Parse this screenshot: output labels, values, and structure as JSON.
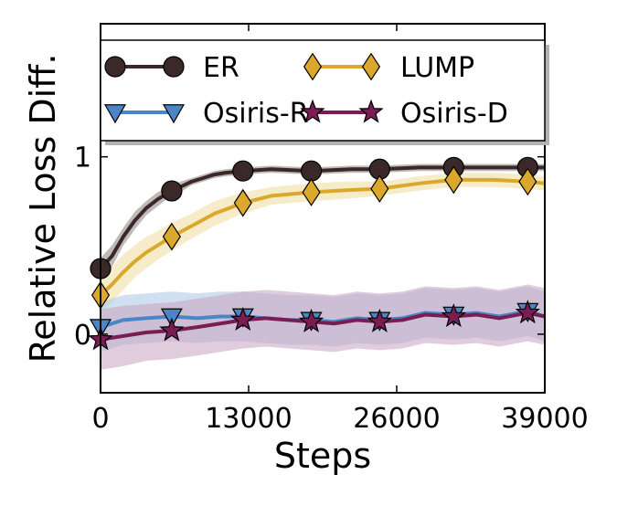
{
  "chart_data": {
    "type": "line",
    "xlabel": "Steps",
    "ylabel": "Relative Loss Diff.",
    "xlim": [
      0,
      39000
    ],
    "ylim": [
      -0.33,
      1.75
    ],
    "xticks": [
      {
        "value": 0,
        "label": "0"
      },
      {
        "value": 13000,
        "label": "13000"
      },
      {
        "value": 26000,
        "label": "26000"
      },
      {
        "value": 39000,
        "label": "39000"
      }
    ],
    "yticks": [
      {
        "value": 0,
        "label": "0"
      },
      {
        "value": 1,
        "label": "1"
      }
    ],
    "grid": false,
    "legend": {
      "placement": "top",
      "columns": 2
    },
    "series": [
      {
        "name": "ER",
        "color": "#3b2828",
        "band_color": "#8a8080",
        "marker": "circle",
        "marker_fill": "#3b2828",
        "x": [
          0,
          1000,
          2000,
          3000,
          4000,
          5000,
          6000,
          7000,
          8000,
          9000,
          10000,
          11000,
          12500,
          15000,
          18500,
          22000,
          24500,
          28000,
          31000,
          34500,
          37500,
          39000
        ],
        "y": [
          0.37,
          0.44,
          0.55,
          0.64,
          0.71,
          0.76,
          0.8,
          0.83,
          0.86,
          0.88,
          0.9,
          0.91,
          0.92,
          0.93,
          0.92,
          0.93,
          0.93,
          0.94,
          0.94,
          0.94,
          0.94,
          0.94
        ],
        "band": [
          0.06,
          0.06,
          0.05,
          0.05,
          0.04,
          0.04,
          0.03,
          0.03,
          0.02,
          0.02,
          0.02,
          0.02,
          0.02,
          0.02,
          0.02,
          0.02,
          0.02,
          0.02,
          0.02,
          0.02,
          0.02,
          0.02
        ],
        "marker_x": [
          0,
          6250,
          12500,
          18500,
          24500,
          31000,
          37500
        ]
      },
      {
        "name": "LUMP",
        "color": "#dba82b",
        "band_color": "#eedc9e",
        "marker": "diamond",
        "marker_fill": "#dba82b",
        "x": [
          0,
          1000,
          2000,
          3000,
          4000,
          5000,
          6250,
          8000,
          10000,
          12500,
          15000,
          18500,
          21000,
          24500,
          28000,
          31000,
          34500,
          37500,
          39000
        ],
        "y": [
          0.22,
          0.28,
          0.35,
          0.41,
          0.46,
          0.5,
          0.55,
          0.61,
          0.68,
          0.74,
          0.78,
          0.8,
          0.81,
          0.82,
          0.85,
          0.87,
          0.87,
          0.86,
          0.85
        ],
        "band": [
          0.1,
          0.1,
          0.1,
          0.09,
          0.09,
          0.08,
          0.08,
          0.07,
          0.07,
          0.06,
          0.05,
          0.05,
          0.05,
          0.04,
          0.04,
          0.04,
          0.04,
          0.04,
          0.04
        ],
        "marker_x": [
          0,
          6250,
          12500,
          18500,
          24500,
          31000,
          37500
        ]
      },
      {
        "name": "Osiris-R",
        "color": "#4a86c5",
        "band_color": "#a9c6e4",
        "marker": "triangle-down",
        "marker_fill": "#4a86c5",
        "x": [
          0,
          2000,
          4000,
          6250,
          8500,
          10500,
          12500,
          14500,
          16500,
          18500,
          20500,
          22500,
          24500,
          26500,
          28500,
          31000,
          33000,
          35000,
          37500,
          39000
        ],
        "y": [
          0.04,
          0.08,
          0.09,
          0.1,
          0.09,
          0.1,
          0.1,
          0.09,
          0.08,
          0.08,
          0.07,
          0.09,
          0.08,
          0.09,
          0.12,
          0.11,
          0.12,
          0.1,
          0.13,
          0.1
        ],
        "band": [
          0.14,
          0.14,
          0.14,
          0.14,
          0.14,
          0.14,
          0.14,
          0.14,
          0.14,
          0.14,
          0.14,
          0.14,
          0.14,
          0.14,
          0.14,
          0.14,
          0.14,
          0.14,
          0.14,
          0.14
        ],
        "marker_x": [
          0,
          6250,
          12500,
          18500,
          24500,
          31000,
          37500
        ]
      },
      {
        "name": "Osiris-D",
        "color": "#7a1d52",
        "band_color": "#c7a2c0",
        "marker": "star",
        "marker_fill": "#7a1d52",
        "x": [
          0,
          2000,
          4000,
          6250,
          8500,
          10500,
          12500,
          14500,
          16500,
          18500,
          20500,
          22500,
          24500,
          26500,
          28500,
          31000,
          33000,
          35000,
          37500,
          39000
        ],
        "y": [
          -0.03,
          -0.01,
          0.01,
          0.02,
          0.04,
          0.06,
          0.08,
          0.09,
          0.08,
          0.07,
          0.06,
          0.08,
          0.07,
          0.08,
          0.11,
          0.1,
          0.11,
          0.09,
          0.12,
          0.1
        ],
        "band": [
          0.17,
          0.17,
          0.16,
          0.16,
          0.16,
          0.16,
          0.16,
          0.16,
          0.16,
          0.16,
          0.16,
          0.16,
          0.16,
          0.16,
          0.16,
          0.16,
          0.16,
          0.16,
          0.16,
          0.16
        ],
        "marker_x": [
          0,
          6250,
          12500,
          18500,
          24500,
          31000,
          37500
        ]
      }
    ]
  }
}
